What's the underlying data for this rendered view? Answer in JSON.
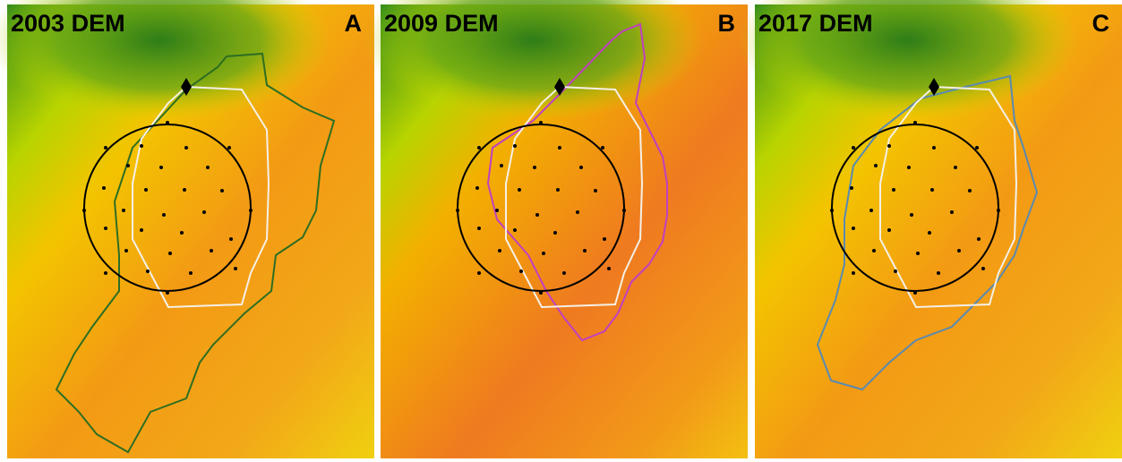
{
  "panels": [
    {
      "title": "2003 DEM",
      "label": "A"
    },
    {
      "title": "2009 DEM",
      "label": "B"
    },
    {
      "title": "2017 DEM",
      "label": "C"
    }
  ]
}
